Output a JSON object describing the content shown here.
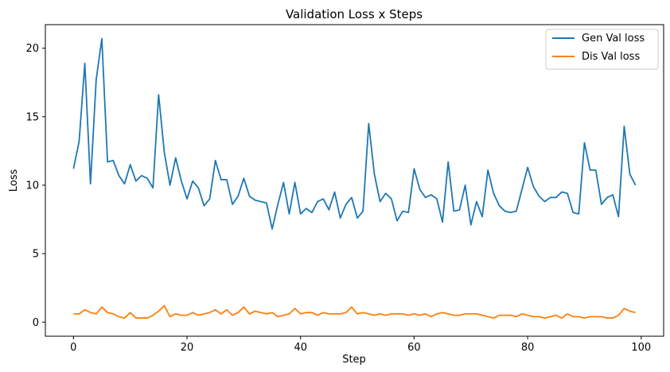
{
  "chart_data": {
    "type": "line",
    "title": "Validation Loss x Steps",
    "xlabel": "Step",
    "ylabel": "Loss",
    "xlim": [
      -4.95,
      103.95
    ],
    "ylim": [
      -1.03,
      21.72
    ],
    "xticks": [
      0,
      20,
      40,
      60,
      80,
      100
    ],
    "yticks": [
      0,
      5,
      10,
      15,
      20
    ],
    "grid": false,
    "legend_position": "top-right",
    "x": [
      0,
      1,
      2,
      3,
      4,
      5,
      6,
      7,
      8,
      9,
      10,
      11,
      12,
      13,
      14,
      15,
      16,
      17,
      18,
      19,
      20,
      21,
      22,
      23,
      24,
      25,
      26,
      27,
      28,
      29,
      30,
      31,
      32,
      33,
      34,
      35,
      36,
      37,
      38,
      39,
      40,
      41,
      42,
      43,
      44,
      45,
      46,
      47,
      48,
      49,
      50,
      51,
      52,
      53,
      54,
      55,
      56,
      57,
      58,
      59,
      60,
      61,
      62,
      63,
      64,
      65,
      66,
      67,
      68,
      69,
      70,
      71,
      72,
      73,
      74,
      75,
      76,
      77,
      78,
      79,
      80,
      81,
      82,
      83,
      84,
      85,
      86,
      87,
      88,
      89,
      90,
      91,
      92,
      93,
      94,
      95,
      96,
      97,
      98,
      99
    ],
    "series": [
      {
        "name": "Gen Val loss",
        "color": "#1f77b4",
        "values": [
          11.2,
          13.2,
          18.9,
          10.1,
          17.7,
          20.7,
          11.7,
          11.8,
          10.7,
          10.1,
          11.5,
          10.3,
          10.7,
          10.5,
          9.8,
          16.6,
          12.4,
          10.0,
          12.0,
          10.3,
          9.0,
          10.3,
          9.8,
          8.5,
          9.0,
          11.8,
          10.4,
          10.4,
          8.6,
          9.2,
          10.5,
          9.2,
          8.9,
          8.8,
          8.7,
          6.8,
          8.6,
          10.2,
          7.9,
          10.2,
          7.9,
          8.3,
          8.0,
          8.8,
          9.0,
          8.2,
          9.5,
          7.6,
          8.6,
          9.1,
          7.6,
          8.1,
          14.5,
          10.8,
          8.8,
          9.4,
          9.0,
          7.4,
          8.1,
          8.0,
          11.2,
          9.7,
          9.1,
          9.3,
          9.0,
          7.3,
          11.7,
          8.1,
          8.2,
          10.0,
          7.1,
          8.8,
          7.7,
          11.1,
          9.4,
          8.5,
          8.1,
          8.0,
          8.1,
          9.7,
          11.3,
          9.9,
          9.2,
          8.8,
          9.1,
          9.1,
          9.5,
          9.4,
          8.0,
          7.9,
          13.1,
          11.1,
          11.1,
          8.6,
          9.1,
          9.3,
          7.7,
          14.3,
          10.8,
          10.0
        ]
      },
      {
        "name": "Dis Val loss",
        "color": "#ff7f0e",
        "values": [
          0.6,
          0.6,
          0.9,
          0.7,
          0.6,
          1.1,
          0.7,
          0.6,
          0.4,
          0.3,
          0.7,
          0.3,
          0.3,
          0.3,
          0.5,
          0.8,
          1.2,
          0.4,
          0.6,
          0.5,
          0.5,
          0.7,
          0.5,
          0.6,
          0.7,
          0.9,
          0.6,
          0.9,
          0.5,
          0.7,
          1.1,
          0.6,
          0.8,
          0.7,
          0.6,
          0.7,
          0.4,
          0.5,
          0.6,
          1.0,
          0.6,
          0.7,
          0.7,
          0.5,
          0.7,
          0.6,
          0.6,
          0.6,
          0.7,
          1.1,
          0.6,
          0.7,
          0.6,
          0.5,
          0.6,
          0.5,
          0.6,
          0.6,
          0.6,
          0.5,
          0.6,
          0.5,
          0.6,
          0.4,
          0.6,
          0.7,
          0.6,
          0.5,
          0.5,
          0.6,
          0.6,
          0.6,
          0.5,
          0.4,
          0.3,
          0.5,
          0.5,
          0.5,
          0.4,
          0.6,
          0.5,
          0.4,
          0.4,
          0.3,
          0.4,
          0.5,
          0.3,
          0.6,
          0.4,
          0.4,
          0.3,
          0.4,
          0.4,
          0.4,
          0.3,
          0.3,
          0.5,
          1.0,
          0.8,
          0.7
        ]
      }
    ]
  }
}
